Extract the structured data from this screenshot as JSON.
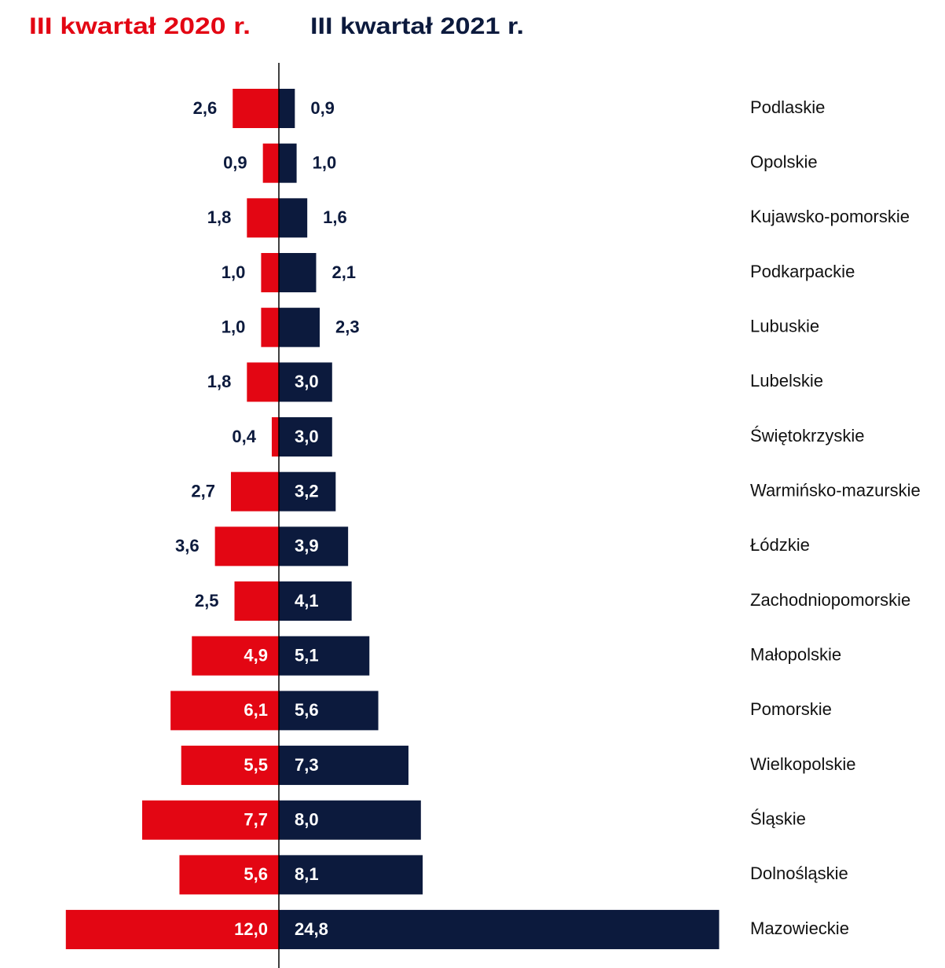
{
  "chart_data": {
    "type": "bar",
    "categories": [
      "Podlaskie",
      "Opolskie",
      "Kujawsko-pomorskie",
      "Podkarpackie",
      "Lubuskie",
      "Lubelskie",
      "Świętokrzyskie",
      "Warmińsko-mazurskie",
      "Łódzkie",
      "Zachodniopomorskie",
      "Małopolskie",
      "Pomorskie",
      "Wielkopolskie",
      "Śląskie",
      "Dolnośląskie",
      "Mazowieckie"
    ],
    "series": [
      {
        "name": "III kwartał 2020 r.",
        "color": "#e30613",
        "values": [
          2.6,
          0.9,
          1.8,
          1.0,
          1.0,
          1.8,
          0.4,
          2.7,
          3.6,
          2.5,
          4.9,
          6.1,
          5.5,
          7.7,
          5.6,
          12.0
        ],
        "value_labels": [
          "2,6",
          "0,9",
          "1,8",
          "1,0",
          "1,0",
          "1,8",
          "0,4",
          "2,7",
          "3,6",
          "2,5",
          "4,9",
          "6,1",
          "5,5",
          "7,7",
          "5,6",
          "12,0"
        ]
      },
      {
        "name": "III kwartał 2021 r.",
        "color": "#0c1a3d",
        "values": [
          0.9,
          1.0,
          1.6,
          2.1,
          2.3,
          3.0,
          3.0,
          3.2,
          3.9,
          4.1,
          5.1,
          5.6,
          7.3,
          8.0,
          8.1,
          24.8
        ],
        "value_labels": [
          "0,9",
          "1,0",
          "1,6",
          "2,1",
          "2,3",
          "3,0",
          "3,0",
          "3,2",
          "3,9",
          "4,1",
          "5,1",
          "5,6",
          "7,3",
          "8,0",
          "8,1",
          "24,8"
        ]
      }
    ]
  }
}
